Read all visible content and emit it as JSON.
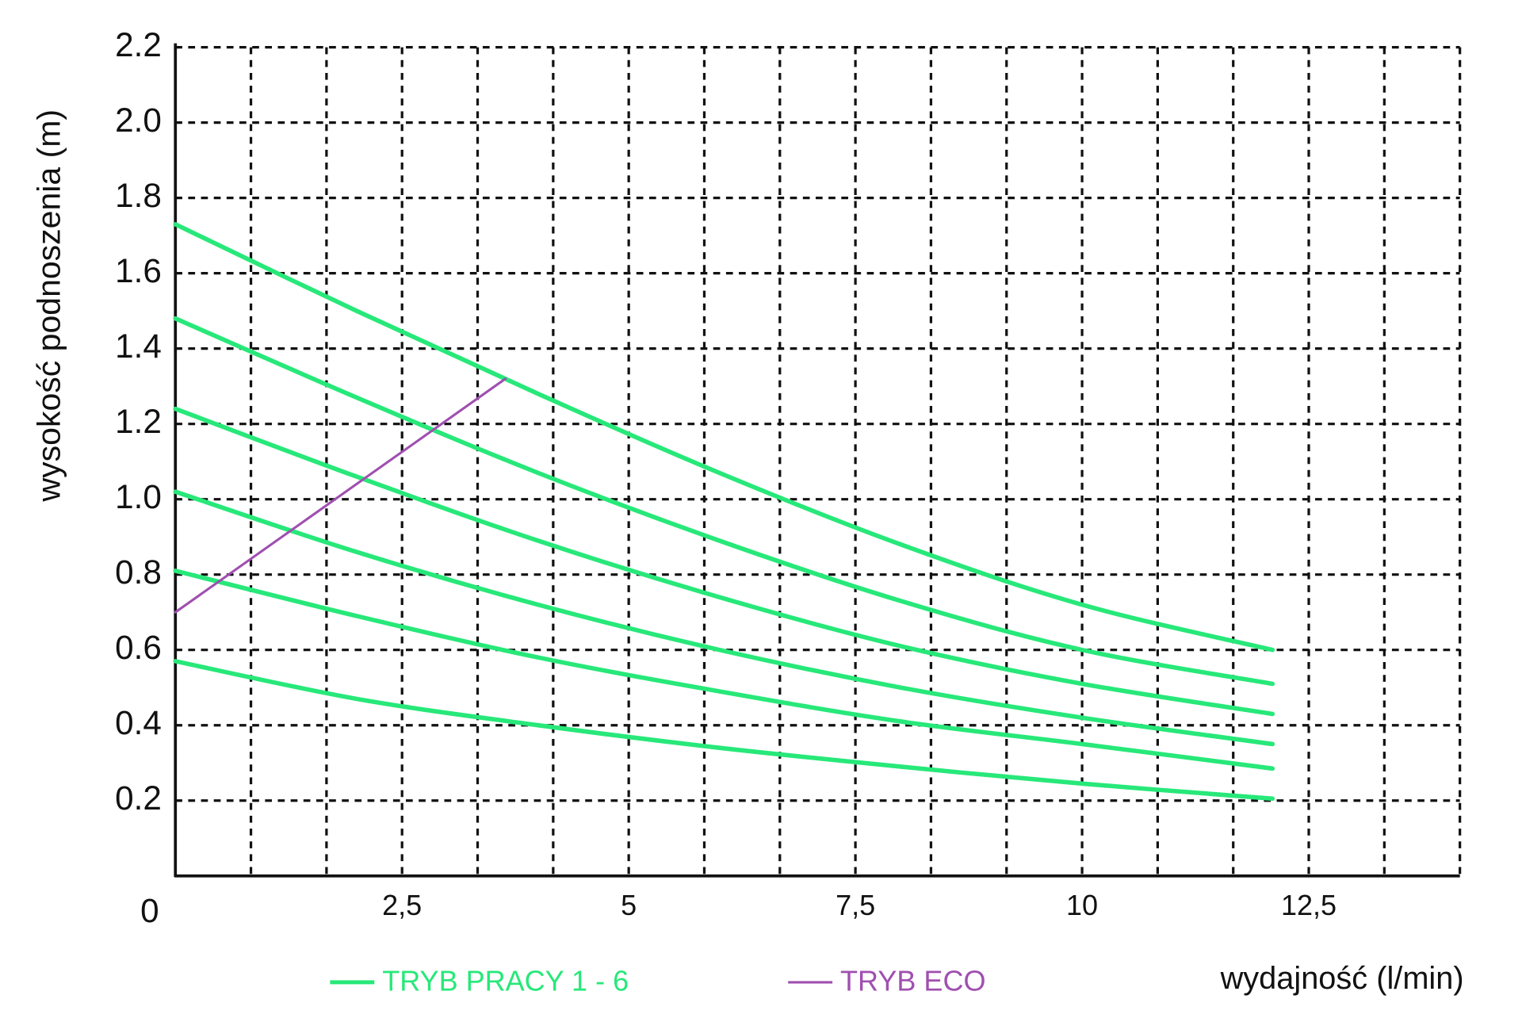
{
  "chart_data": {
    "type": "line",
    "y_label": "wysokość podnoszenia (m)",
    "x_label": "wydajność (l/min)",
    "xlim": [
      0,
      14.1667
    ],
    "ylim": [
      0,
      2.2
    ],
    "xticks": [
      0,
      {
        "value": 0.8333,
        "label": null
      },
      {
        "value": 1.6667,
        "label": null
      },
      {
        "value": 2.5,
        "label": "2,5"
      },
      {
        "value": 3.3333,
        "label": null
      },
      {
        "value": 4.1667,
        "label": null
      },
      5,
      {
        "value": 5.8333,
        "label": null
      },
      {
        "value": 6.6667,
        "label": null
      },
      {
        "value": 7.5,
        "label": "7,5"
      },
      {
        "value": 8.3333,
        "label": null
      },
      {
        "value": 9.1667,
        "label": null
      },
      10,
      {
        "value": 10.8333,
        "label": null
      },
      {
        "value": 11.6667,
        "label": null
      },
      {
        "value": 12.5,
        "label": "12,5"
      },
      {
        "value": 13.3333,
        "label": null
      },
      {
        "value": 14.1667,
        "label": null
      }
    ],
    "yticks": [
      0.2,
      0.4,
      0.6,
      0.8,
      {
        "value": 1,
        "label": "1.0"
      },
      1.2,
      1.4,
      1.6,
      1.8,
      {
        "value": 2,
        "label": "2.0"
      },
      2.2
    ],
    "grid": true,
    "legend": [
      {
        "label": "TRYB PRACY 1 - 6",
        "color": "#27e879"
      },
      {
        "label": "TRYB ECO",
        "color": "#a04fb0"
      }
    ],
    "series": [
      {
        "color": "#27e879",
        "x": [
          0,
          2,
          4,
          6,
          8,
          10,
          12.1
        ],
        "values": [
          1.73,
          1.5,
          1.28,
          1.07,
          0.88,
          0.72,
          0.6
        ]
      },
      {
        "color": "#27e879",
        "x": [
          0,
          2,
          4,
          6,
          8,
          10,
          12.1
        ],
        "values": [
          1.48,
          1.27,
          1.07,
          0.89,
          0.73,
          0.6,
          0.51
        ]
      },
      {
        "color": "#27e879",
        "x": [
          0,
          2,
          4,
          6,
          8,
          10,
          12.1
        ],
        "values": [
          1.24,
          1.06,
          0.89,
          0.74,
          0.61,
          0.51,
          0.43
        ]
      },
      {
        "color": "#27e879",
        "x": [
          0,
          2,
          4,
          6,
          8,
          10,
          12.1
        ],
        "values": [
          1.02,
          0.86,
          0.72,
          0.6,
          0.5,
          0.42,
          0.35
        ]
      },
      {
        "color": "#27e879",
        "x": [
          0,
          2,
          4,
          6,
          8,
          10,
          12.1
        ],
        "values": [
          0.81,
          0.69,
          0.58,
          0.49,
          0.41,
          0.35,
          0.285
        ]
      },
      {
        "color": "#27e879",
        "x": [
          0,
          2,
          4,
          6,
          8,
          10,
          12.1
        ],
        "values": [
          0.57,
          0.47,
          0.4,
          0.34,
          0.29,
          0.245,
          0.205
        ]
      },
      {
        "color": "#a04fb0",
        "width": 2.5,
        "x": [
          0,
          3.64
        ],
        "values": [
          0.7,
          1.32
        ]
      }
    ]
  }
}
